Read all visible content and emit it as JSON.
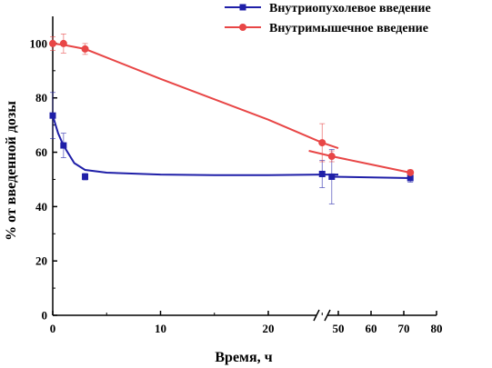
{
  "chart_data": {
    "type": "scatter",
    "xlabel": "Время, ч",
    "ylabel": "% от введенной дозы",
    "ylim": [
      0,
      110
    ],
    "x_axis_break": true,
    "x_segments": [
      {
        "range": [
          0,
          27
        ],
        "ticks": [
          0,
          10,
          20
        ]
      },
      {
        "range": [
          40,
          80
        ],
        "ticks": [
          50,
          60,
          70,
          80
        ]
      }
    ],
    "yticks": [
      0,
      20,
      40,
      60,
      80,
      100
    ],
    "grid": false,
    "legend_position": "top-right",
    "series": [
      {
        "name": "Внутриопухолевое введение",
        "color": "#1f1fa8",
        "marker": "square",
        "points": [
          {
            "x": 0,
            "y": 73.5,
            "err": 8.5
          },
          {
            "x": 1,
            "y": 62.5,
            "err": 4.5
          },
          {
            "x": 3,
            "y": 51,
            "err": 1.2
          },
          {
            "x": 25,
            "y": 52,
            "err": 5
          },
          {
            "x": 48,
            "y": 51,
            "err": 10
          },
          {
            "x": 72,
            "y": 50.5,
            "err": 1.5
          }
        ],
        "fit": [
          [
            0,
            73.5
          ],
          [
            0.5,
            67
          ],
          [
            1,
            62.5
          ],
          [
            2,
            56
          ],
          [
            3,
            53.5
          ],
          [
            5,
            52.5
          ],
          [
            10,
            51.8
          ],
          [
            15,
            51.6
          ],
          [
            20,
            51.6
          ],
          [
            25,
            51.8
          ],
          [
            26.5,
            51.8
          ],
          [
            48,
            51
          ],
          [
            72,
            50.5
          ]
        ]
      },
      {
        "name": "Внутримышечное введение",
        "color": "#e84646",
        "marker": "circle",
        "points": [
          {
            "x": 0,
            "y": 100,
            "err": 2.5
          },
          {
            "x": 1,
            "y": 100,
            "err": 3.5
          },
          {
            "x": 3,
            "y": 98,
            "err": 2
          },
          {
            "x": 25,
            "y": 63.5,
            "err": 7
          },
          {
            "x": 48,
            "y": 58.5,
            "err": 2
          },
          {
            "x": 72,
            "y": 52.5,
            "err": 1
          }
        ],
        "fit": [
          [
            0,
            100
          ],
          [
            1,
            99.5
          ],
          [
            3,
            98
          ],
          [
            10,
            87
          ],
          [
            20,
            72
          ],
          [
            25,
            63.5
          ],
          [
            26.5,
            61.5
          ],
          [
            41,
            60.5
          ],
          [
            48,
            58.5
          ],
          [
            60,
            55.5
          ],
          [
            72,
            52.5
          ]
        ]
      }
    ]
  }
}
